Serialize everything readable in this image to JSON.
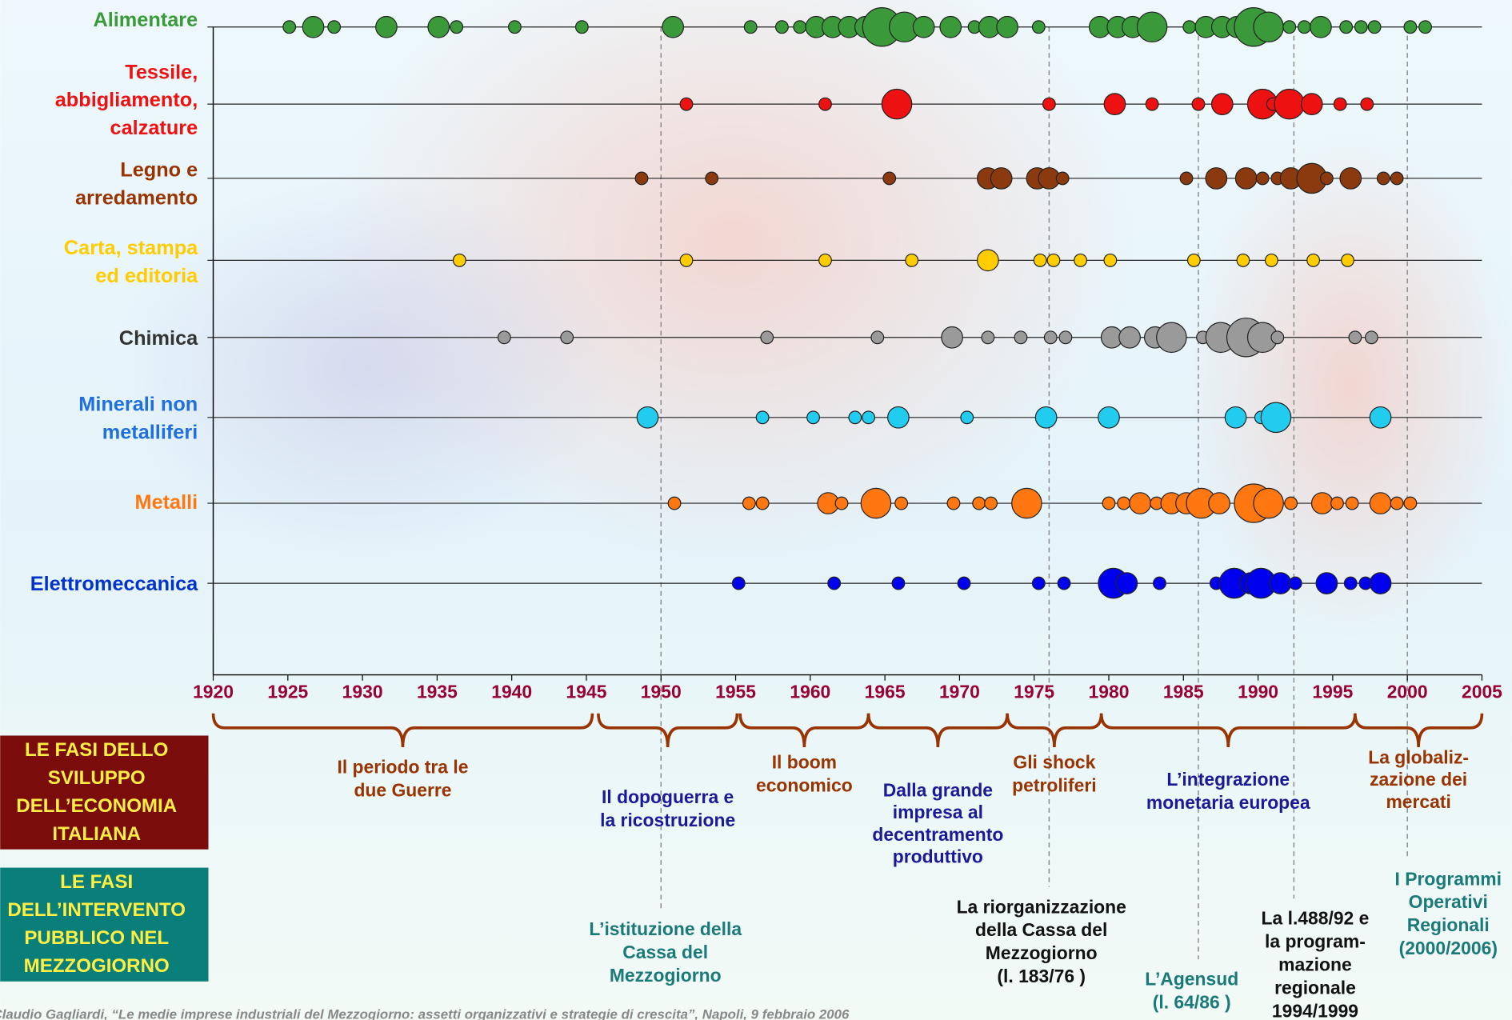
{
  "chart_data": {
    "type": "bubble-timeline",
    "xlim": [
      1920,
      2005
    ],
    "xticks": [
      1920,
      1925,
      1930,
      1935,
      1940,
      1945,
      1950,
      1955,
      1960,
      1965,
      1970,
      1975,
      1980,
      1985,
      1990,
      1995,
      2000,
      2005
    ],
    "tick_color": "#990033",
    "series": [
      {
        "name": [
          "Alimentare"
        ],
        "color": "#3a9a3a",
        "label_color": "#3a9a3a",
        "x": [
          1925.1,
          1926.7,
          1928.1,
          1931.6,
          1935.1,
          1936.3,
          1940.2,
          1944.7,
          1950.8,
          1956.0,
          1958.1,
          1959.3,
          1960.4,
          1961.5,
          1962.6,
          1963.7,
          1964.8,
          1966.3,
          1967.6,
          1969.4,
          1971.0,
          1972.0,
          1973.2,
          1975.3,
          1979.4,
          1980.6,
          1981.6,
          1982.9,
          1985.4,
          1986.5,
          1987.6,
          1988.6,
          1989.7,
          1990.7,
          1992.1,
          1993.1,
          1994.2,
          1995.9,
          1996.9,
          1997.8,
          2000.2,
          2001.2
        ],
        "sizes": [
          1,
          2,
          1,
          2,
          2,
          1,
          1,
          1,
          2,
          1,
          1,
          1,
          2,
          2,
          2,
          2,
          4,
          3,
          2,
          2,
          1,
          2,
          2,
          1,
          2,
          2,
          2,
          3,
          1,
          2,
          2,
          2,
          4,
          3,
          1,
          1,
          2,
          1,
          1,
          1,
          1,
          1
        ]
      },
      {
        "name": [
          "Tessile,",
          "abbigliamento,",
          "calzature"
        ],
        "color": "#ee1111",
        "label_color": "#ee1111",
        "x": [
          1951.7,
          1961.0,
          1965.8,
          1976.0,
          1980.4,
          1982.9,
          1986.0,
          1987.6,
          1990.3,
          1991.0,
          1992.1,
          1993.6,
          1995.5,
          1997.3
        ],
        "sizes": [
          1,
          1,
          3,
          1,
          2,
          1,
          1,
          2,
          3,
          1,
          3,
          2,
          1,
          1
        ]
      },
      {
        "name": [
          "Legno e",
          "arredamento"
        ],
        "color": "#8b3a0f",
        "label_color": "#993300",
        "x": [
          1948.7,
          1953.4,
          1965.3,
          1971.9,
          1972.8,
          1975.2,
          1976.0,
          1976.9,
          1985.2,
          1987.2,
          1989.2,
          1990.3,
          1991.3,
          1992.2,
          1993.6,
          1994.6,
          1996.2,
          1998.4,
          1999.3
        ],
        "sizes": [
          1,
          1,
          1,
          2,
          2,
          2,
          2,
          1,
          1,
          2,
          2,
          1,
          1,
          2,
          3,
          1,
          2,
          1,
          1
        ]
      },
      {
        "name": [
          "Carta, stampa",
          "ed editoria"
        ],
        "color": "#ffcc00",
        "label_color": "#ffcc00",
        "x": [
          1936.5,
          1951.7,
          1961.0,
          1966.8,
          1971.9,
          1975.4,
          1976.3,
          1978.1,
          1980.1,
          1985.7,
          1989.0,
          1990.9,
          1993.7,
          1996.0
        ],
        "sizes": [
          1,
          1,
          1,
          1,
          2,
          1,
          1,
          1,
          1,
          1,
          1,
          1,
          1,
          1
        ]
      },
      {
        "name": [
          "Chimica"
        ],
        "color": "#9a9a9a",
        "label_color": "#333333",
        "x": [
          1939.5,
          1943.7,
          1957.1,
          1964.5,
          1969.5,
          1971.9,
          1974.1,
          1976.1,
          1977.1,
          1980.2,
          1981.4,
          1983.1,
          1984.2,
          1986.3,
          1987.5,
          1989.2,
          1990.3,
          1991.3,
          1996.5,
          1997.6
        ],
        "sizes": [
          1,
          1,
          1,
          1,
          2,
          1,
          1,
          1,
          1,
          2,
          2,
          2,
          3,
          1,
          3,
          4,
          3,
          1,
          1,
          1
        ]
      },
      {
        "name": [
          "Minerali non",
          "metalliferi"
        ],
        "color": "#22ccee",
        "label_color": "#1e6fe0",
        "x": [
          1949.1,
          1956.8,
          1960.2,
          1963.0,
          1963.9,
          1965.9,
          1970.5,
          1975.8,
          1980.0,
          1988.5,
          1990.2,
          1991.2,
          1998.2
        ],
        "sizes": [
          2,
          1,
          1,
          1,
          1,
          2,
          1,
          2,
          2,
          2,
          1,
          3,
          2
        ]
      },
      {
        "name": [
          "Metalli"
        ],
        "color": "#ff7711",
        "label_color": "#ff7711",
        "x": [
          1950.9,
          1955.9,
          1956.8,
          1961.2,
          1962.1,
          1964.4,
          1966.1,
          1969.6,
          1971.3,
          1972.1,
          1974.5,
          1980.0,
          1981.0,
          1982.1,
          1983.2,
          1984.2,
          1985.2,
          1986.2,
          1987.4,
          1989.7,
          1990.7,
          1992.2,
          1994.3,
          1995.3,
          1996.3,
          1998.2,
          1999.3,
          2000.2
        ],
        "sizes": [
          1,
          1,
          1,
          2,
          1,
          3,
          1,
          1,
          1,
          1,
          3,
          1,
          1,
          2,
          1,
          2,
          2,
          3,
          2,
          4,
          3,
          1,
          2,
          1,
          1,
          2,
          1,
          1
        ]
      },
      {
        "name": [
          "Elettromeccanica"
        ],
        "color": "#0000ee",
        "label_color": "#0033cc",
        "x": [
          1955.2,
          1961.6,
          1965.9,
          1970.3,
          1975.3,
          1977.0,
          1980.3,
          1981.2,
          1983.4,
          1987.2,
          1988.4,
          1989.5,
          1990.2,
          1991.5,
          1992.5,
          1994.6,
          1996.2,
          1997.2,
          1998.2
        ],
        "sizes": [
          1,
          1,
          1,
          1,
          1,
          1,
          3,
          2,
          1,
          1,
          3,
          2,
          3,
          2,
          1,
          2,
          1,
          1,
          2
        ]
      }
    ],
    "phases": [
      {
        "span": [
          1920,
          1945.4
        ],
        "label": [
          "Il periodo tra le",
          "due Guerre"
        ],
        "color": "#993300"
      },
      {
        "span": [
          1945.8,
          1955.1
        ],
        "label": [
          "Il dopoguerra e",
          "la ricostruzione"
        ],
        "color": "#1a1a99"
      },
      {
        "span": [
          1955.3,
          1963.9
        ],
        "label": [
          "Il boom",
          "economico"
        ],
        "color": "#993300"
      },
      {
        "span": [
          1963.9,
          1973.2
        ],
        "label": [
          "Dalla grande",
          "impresa al",
          "decentramento",
          "produttivo"
        ],
        "color": "#1a1a99"
      },
      {
        "span": [
          1973.2,
          1979.5
        ],
        "label": [
          "Gli shock",
          "petroliferi"
        ],
        "color": "#993300"
      },
      {
        "span": [
          1979.5,
          1996.5
        ],
        "label": [
          "L’integrazione",
          "monetaria europea"
        ],
        "color": "#1a1a99"
      },
      {
        "span": [
          1996.5,
          2005
        ],
        "label": [
          "La globaliz-",
          "zazione dei",
          "mercati"
        ],
        "color": "#993300"
      }
    ],
    "interventions": [
      {
        "year": 1950,
        "label": [
          "L’istituzione della",
          "Cassa del",
          "Mezzogiorno"
        ],
        "color": "#1a7a7a"
      },
      {
        "year": 1976,
        "label": [
          "La riorganizzazione",
          "della Cassa del",
          "Mezzogiorno",
          "(l. 183/76 )"
        ],
        "color": "#111111"
      },
      {
        "year": 1986,
        "label": [
          "L’Agensud",
          "(l. 64/86 )"
        ],
        "color": "#1a7a7a"
      },
      {
        "year": 1992.4,
        "label": [
          "La l.488/92 e",
          "la program-",
          "mazione",
          "regionale",
          "1994/1999"
        ],
        "color": "#111111"
      },
      {
        "year": 2000,
        "label": [
          "I Programmi",
          "Operativi",
          "Regionali",
          "(2000/2006)"
        ],
        "color": "#1a7a7a"
      }
    ]
  },
  "boxes": [
    {
      "lines": [
        "LE FASI DELLO",
        "SVILUPPO",
        "DELL’ECONOMIA",
        "ITALIANA"
      ],
      "color": "#7a0c0c"
    },
    {
      "lines": [
        "LE FASI",
        "DELL’INTERVENTO",
        "PUBBLICO NEL",
        "MEZZOGIORNO"
      ],
      "color": "#0a7f7a"
    }
  ],
  "footer": "Claudio Gagliardi, “Le medie imprese industriali del Mezzogiorno: assetti organizzativi e strategie di crescita”, Napoli, 9 febbraio 2006"
}
